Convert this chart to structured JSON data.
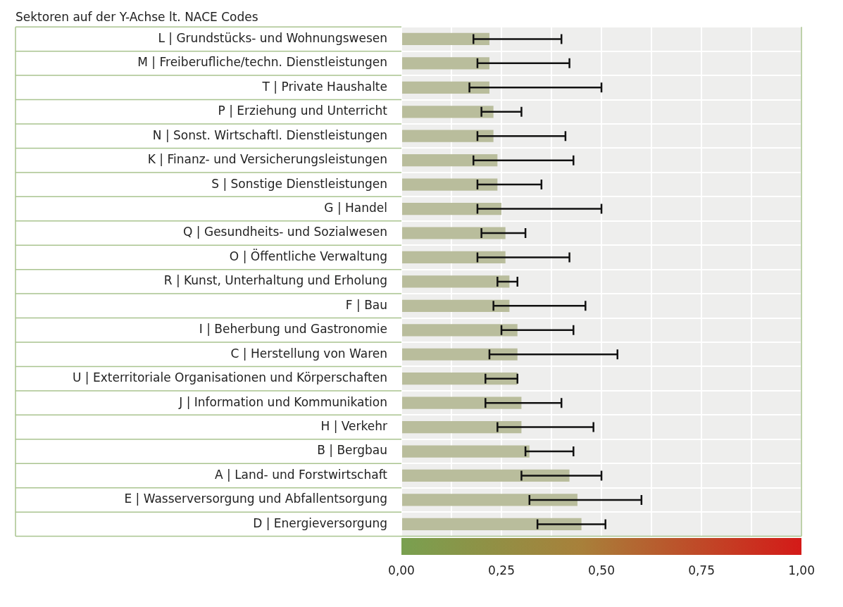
{
  "chart_data": {
    "type": "bar",
    "orientation": "horizontal",
    "annotations": [
      "Sektoren auf der Y-Achse lt. NACE Codes"
    ],
    "categories": [
      "L | Grundstücks- und Wohnungswesen",
      "M | Freiberufliche/techn. Dienstleistungen",
      "T | Private Haushalte",
      "P | Erziehung und Unterricht",
      "N | Sonst. Wirtschaftl. Dienstleistungen",
      "K | Finanz- und Versicherungsleistungen",
      "S | Sonstige Dienstleistungen",
      "G | Handel",
      "Q | Gesundheits- und Sozialwesen",
      "O | Öffentliche Verwaltung",
      "R | Kunst, Unterhaltung und Erholung",
      "F | Bau",
      "I | Beherbung und Gastronomie",
      "C | Herstellung von Waren",
      "U | Exterritoriale Organisationen und Körperschaften",
      "J | Information und Kommunikation",
      "H | Verkehr",
      "B | Bergbau",
      "A | Land- und Forstwirtschaft",
      "E | Wasserversorgung und Abfallentsorgung",
      "D | Energieversorgung"
    ],
    "values": [
      0.22,
      0.22,
      0.22,
      0.23,
      0.23,
      0.24,
      0.24,
      0.25,
      0.26,
      0.26,
      0.27,
      0.27,
      0.29,
      0.29,
      0.29,
      0.3,
      0.3,
      0.32,
      0.42,
      0.44,
      0.45
    ],
    "errors": [
      [
        0.18,
        0.4
      ],
      [
        0.19,
        0.42
      ],
      [
        0.17,
        0.5
      ],
      [
        0.2,
        0.3
      ],
      [
        0.19,
        0.41
      ],
      [
        0.18,
        0.43
      ],
      [
        0.19,
        0.35
      ],
      [
        0.19,
        0.5
      ],
      [
        0.2,
        0.31
      ],
      [
        0.19,
        0.42
      ],
      [
        0.24,
        0.29
      ],
      [
        0.23,
        0.46
      ],
      [
        0.25,
        0.43
      ],
      [
        0.22,
        0.54
      ],
      [
        0.21,
        0.29
      ],
      [
        0.21,
        0.4
      ],
      [
        0.24,
        0.48
      ],
      [
        0.31,
        0.43
      ],
      [
        0.3,
        0.5
      ],
      [
        0.32,
        0.6
      ],
      [
        0.34,
        0.51
      ]
    ],
    "color": "#b9bd9c",
    "xlim": [
      0,
      1
    ],
    "xticks": [
      {
        "value": 0,
        "label": "0,00"
      },
      {
        "value": 0.125,
        "label": null
      },
      {
        "value": 0.25,
        "label": "0,25"
      },
      {
        "value": 0.375,
        "label": null
      },
      {
        "value": 0.5,
        "label": "0,50"
      },
      {
        "value": 0.625,
        "label": null
      },
      {
        "value": 0.75,
        "label": "0,75"
      },
      {
        "value": 0.875,
        "label": null
      },
      {
        "value": 1,
        "label": "1,00"
      }
    ],
    "grid": true,
    "legend": false
  }
}
